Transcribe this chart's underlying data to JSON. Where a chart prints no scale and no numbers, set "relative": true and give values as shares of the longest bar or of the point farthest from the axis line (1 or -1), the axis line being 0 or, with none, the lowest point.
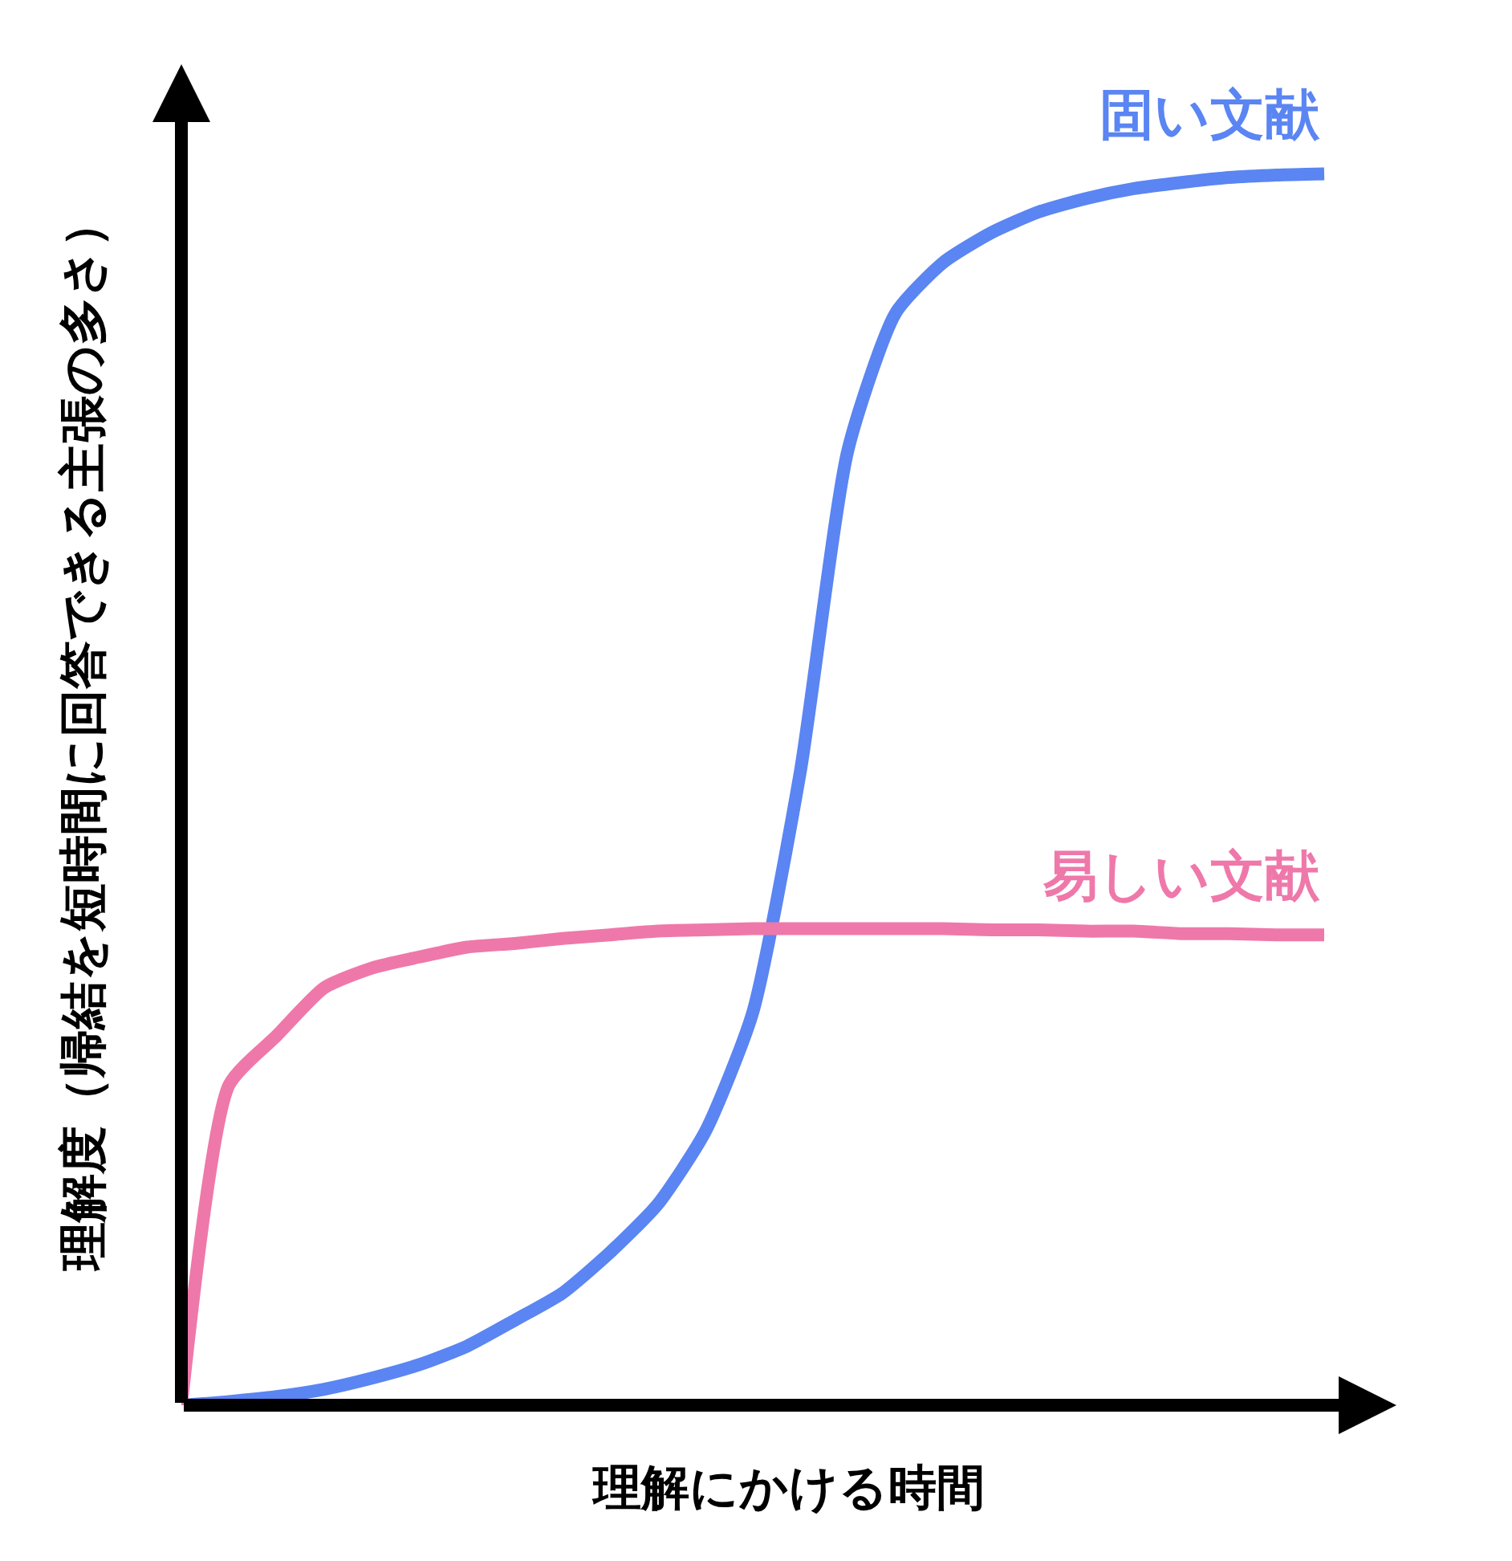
{
  "chart_data": {
    "type": "line",
    "relative": true,
    "xlabel": "理解にかける時間",
    "ylabel": "理解度（帰結を短時間に回答できる主張の多さ）",
    "categories": [
      null,
      null,
      null,
      null,
      null,
      null,
      null,
      null,
      null,
      null,
      null,
      null,
      null,
      null,
      null,
      null,
      null,
      null,
      null,
      null,
      null,
      null,
      null,
      null,
      null
    ],
    "series": [
      {
        "name": "固い文献",
        "color": "#5a85f2",
        "values": [
          0,
          0.003,
          0.007,
          0.013,
          0.022,
          0.033,
          0.048,
          0.069,
          0.091,
          0.124,
          0.163,
          0.222,
          0.319,
          0.515,
          0.776,
          0.887,
          0.928,
          0.952,
          0.969,
          0.98,
          0.988,
          0.993,
          0.997,
          0.999,
          1
        ]
      },
      {
        "name": "易しい文献",
        "color": "#ef78aa",
        "values": [
          0,
          0.26,
          0.3,
          0.339,
          0.355,
          0.364,
          0.372,
          0.375,
          0.379,
          0.382,
          0.385,
          0.386,
          0.387,
          0.387,
          0.387,
          0.387,
          0.387,
          0.386,
          0.386,
          0.385,
          0.385,
          0.383,
          0.383,
          0.382,
          0.382
        ]
      }
    ],
    "legend": false,
    "marker": "none",
    "line_style": "solid"
  }
}
